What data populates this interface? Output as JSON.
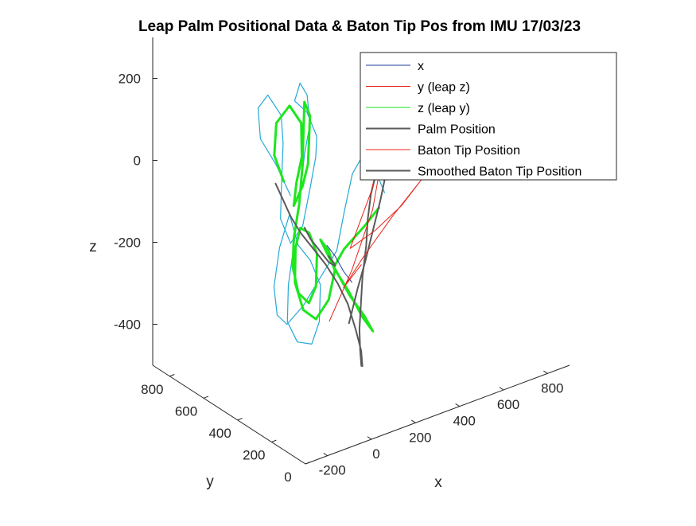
{
  "chart_data": {
    "type": "line",
    "projection": "3d",
    "title": "Leap Palm Positional Data & Baton Tip Pos from IMU 17/03/23",
    "xlabel": "x",
    "ylabel": "y",
    "zlabel": "z",
    "xlim": [
      -300,
      900
    ],
    "ylim": [
      0,
      900
    ],
    "zlim": [
      -500,
      300
    ],
    "x_ticks": [
      "-200",
      "0",
      "200",
      "400",
      "600",
      "800"
    ],
    "y_ticks": [
      "0",
      "200",
      "400",
      "600",
      "800"
    ],
    "z_ticks": [
      "-400",
      "-200",
      "0",
      "200"
    ],
    "grid": false,
    "legend_position": "top-right",
    "colors": {
      "x": "#1f3ea0",
      "y_leap_z": "#e8241a",
      "z_leap_y": "#19e019",
      "palm": "#5a5a5a",
      "baton": "#e8241a",
      "smoothed": "#5a5a5a",
      "cyan_trace": "#22a9d6",
      "green_trace": "#1ee61e"
    },
    "legend": [
      {
        "label": "x",
        "color": "#1f3ea0",
        "width": 1
      },
      {
        "label": "y (leap z)",
        "color": "#e8241a",
        "width": 1
      },
      {
        "label": "z (leap y)",
        "color": "#19e019",
        "width": 1
      },
      {
        "label": "Palm Position",
        "color": "#5a5a5a",
        "width": 2
      },
      {
        "label": "Baton Tip Position",
        "color": "#e8241a",
        "width": 1
      },
      {
        "label": "Smoothed Baton Tip Position",
        "color": "#5a5a5a",
        "width": 2
      }
    ],
    "series": [
      {
        "key": "cyan_trace",
        "color": "#22a9d6",
        "width": 1.2,
        "points": [
          [
            -60,
            400,
            0
          ],
          [
            -110,
            420,
            80
          ],
          [
            -150,
            460,
            140
          ],
          [
            -130,
            500,
            200
          ],
          [
            -70,
            520,
            215
          ],
          [
            -40,
            480,
            170
          ],
          [
            -70,
            430,
            120
          ],
          [
            -100,
            400,
            40
          ],
          [
            -120,
            380,
            -40
          ],
          [
            -90,
            360,
            -100
          ],
          [
            -50,
            340,
            -60
          ],
          [
            0,
            360,
            20
          ],
          [
            40,
            380,
            80
          ],
          [
            60,
            400,
            120
          ],
          [
            30,
            420,
            180
          ],
          [
            -10,
            440,
            210
          ],
          [
            30,
            460,
            240
          ],
          [
            70,
            470,
            200
          ],
          [
            60,
            440,
            140
          ],
          [
            20,
            420,
            80
          ],
          [
            -20,
            400,
            -20
          ],
          [
            -60,
            380,
            -120
          ],
          [
            -100,
            360,
            -200
          ],
          [
            -120,
            340,
            -280
          ],
          [
            -90,
            320,
            -330
          ],
          [
            -40,
            300,
            -340
          ],
          [
            10,
            320,
            -300
          ],
          [
            30,
            340,
            -220
          ],
          [
            0,
            360,
            -160
          ],
          [
            -40,
            380,
            -120
          ],
          [
            -80,
            360,
            -60
          ],
          [
            -110,
            340,
            -20
          ],
          [
            -140,
            360,
            -100
          ],
          [
            -150,
            380,
            -200
          ],
          [
            -120,
            400,
            -280
          ],
          [
            -60,
            420,
            -320
          ],
          [
            0,
            400,
            -280
          ],
          [
            60,
            380,
            -220
          ],
          [
            120,
            360,
            -160
          ],
          [
            140,
            340,
            -60
          ],
          [
            160,
            320,
            30
          ],
          [
            200,
            300,
            80
          ],
          [
            230,
            280,
            40
          ],
          [
            260,
            260,
            -20
          ]
        ]
      },
      {
        "key": "green_trace",
        "color": "#1ee61e",
        "width": 3,
        "points": [
          [
            -90,
            400,
            40
          ],
          [
            -110,
            430,
            100
          ],
          [
            -70,
            470,
            160
          ],
          [
            -10,
            470,
            190
          ],
          [
            20,
            440,
            150
          ],
          [
            0,
            410,
            80
          ],
          [
            -40,
            390,
            30
          ],
          [
            -60,
            380,
            -20
          ],
          [
            -20,
            380,
            20
          ],
          [
            20,
            400,
            60
          ],
          [
            40,
            420,
            110
          ],
          [
            60,
            440,
            160
          ],
          [
            50,
            460,
            190
          ],
          [
            30,
            440,
            120
          ],
          [
            10,
            420,
            50
          ],
          [
            -20,
            400,
            -30
          ],
          [
            -60,
            380,
            -100
          ],
          [
            -80,
            360,
            -160
          ],
          [
            -70,
            340,
            -220
          ],
          [
            -30,
            330,
            -250
          ],
          [
            10,
            340,
            -220
          ],
          [
            30,
            360,
            -150
          ],
          [
            10,
            380,
            -100
          ],
          [
            -30,
            380,
            -80
          ],
          [
            -60,
            370,
            -120
          ],
          [
            -70,
            360,
            -200
          ],
          [
            -40,
            350,
            -270
          ],
          [
            10,
            340,
            -300
          ],
          [
            60,
            330,
            -260
          ],
          [
            80,
            320,
            -190
          ],
          [
            60,
            330,
            -140
          ],
          [
            30,
            340,
            -110
          ],
          [
            80,
            330,
            -180
          ],
          [
            140,
            310,
            -260
          ],
          [
            200,
            300,
            -320
          ],
          [
            230,
            290,
            -360
          ],
          [
            190,
            300,
            -320
          ],
          [
            140,
            320,
            -250
          ],
          [
            90,
            340,
            -190
          ],
          [
            130,
            330,
            -150
          ],
          [
            200,
            300,
            -100
          ],
          [
            250,
            280,
            -60
          ]
        ]
      },
      {
        "key": "x",
        "color": "#1f3ea0",
        "width": 1,
        "points": [
          [
            60,
            340,
            -130
          ],
          [
            90,
            330,
            -160
          ],
          [
            120,
            320,
            -200
          ],
          [
            150,
            310,
            -230
          ]
        ]
      },
      {
        "key": "smoothed",
        "color": "#5a5a5a",
        "width": 2,
        "points": [
          [
            -50,
            500,
            0
          ],
          [
            -30,
            480,
            -40
          ],
          [
            -10,
            460,
            -80
          ],
          [
            20,
            440,
            -120
          ],
          [
            60,
            420,
            -160
          ],
          [
            100,
            400,
            -200
          ],
          [
            140,
            380,
            -250
          ],
          [
            170,
            360,
            -300
          ],
          [
            190,
            340,
            -360
          ],
          [
            200,
            320,
            -410
          ],
          [
            190,
            300,
            -440
          ],
          [
            170,
            280,
            -430
          ],
          [
            180,
            300,
            -400
          ],
          [
            200,
            330,
            -360
          ],
          [
            230,
            360,
            -310
          ],
          [
            260,
            390,
            -260
          ],
          [
            300,
            420,
            -200
          ],
          [
            330,
            450,
            -150
          ],
          [
            360,
            470,
            -100
          ],
          [
            390,
            480,
            -60
          ],
          [
            420,
            490,
            -30
          ],
          [
            440,
            500,
            -10
          ],
          [
            460,
            480,
            -20
          ],
          [
            420,
            460,
            -60
          ],
          [
            380,
            440,
            -110
          ],
          [
            330,
            420,
            -170
          ],
          [
            280,
            400,
            -230
          ],
          [
            230,
            380,
            -280
          ],
          [
            190,
            360,
            -320
          ],
          [
            160,
            340,
            -340
          ]
        ]
      },
      {
        "key": "palm",
        "color": "#5a5a5a",
        "width": 2,
        "points": [
          [
            20,
            420,
            -100
          ],
          [
            40,
            410,
            -130
          ],
          [
            60,
            400,
            -150
          ],
          [
            80,
            390,
            -170
          ],
          [
            100,
            380,
            -190
          ],
          [
            120,
            370,
            -200
          ],
          [
            110,
            360,
            -190
          ],
          [
            90,
            370,
            -170
          ]
        ]
      },
      {
        "key": "baton",
        "color": "#e8241a",
        "width": 1,
        "points": [
          [
            40,
            300,
            -300
          ],
          [
            150,
            310,
            -200
          ],
          [
            260,
            330,
            -80
          ],
          [
            330,
            360,
            40
          ],
          [
            380,
            380,
            120
          ],
          [
            260,
            340,
            -40
          ],
          [
            150,
            320,
            -150
          ],
          [
            250,
            300,
            -120
          ],
          [
            360,
            290,
            -80
          ],
          [
            460,
            290,
            -30
          ],
          [
            330,
            300,
            -100
          ],
          [
            200,
            310,
            -180
          ],
          [
            120,
            320,
            -240
          ],
          [
            200,
            320,
            -200
          ]
        ]
      }
    ]
  }
}
